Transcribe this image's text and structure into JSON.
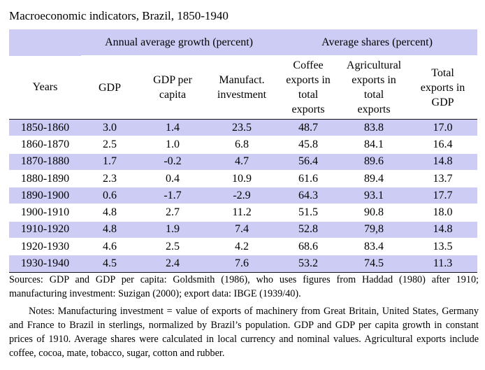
{
  "title": "Macroeconomic indicators, Brazil, 1850-1940",
  "header": {
    "group_growth": "Annual average growth (percent)",
    "group_shares": "Average shares (percent)",
    "col_years": "Years",
    "col_gdp": "GDP",
    "col_gdp_pc": [
      "GDP per",
      "capita"
    ],
    "col_manuf": [
      "Manufact.",
      "investment"
    ],
    "col_coffee": [
      "Coffee",
      "exports in",
      "total",
      "exports"
    ],
    "col_agri": [
      "Agricultural",
      "exports in",
      "total",
      "exports"
    ],
    "col_total": [
      "Total",
      "exports in",
      "GDP"
    ]
  },
  "rows": [
    {
      "years": "1850-1860",
      "gdp": "3.0",
      "gdp_pc": "1.4",
      "manuf": "23.5",
      "coffee": "48.7",
      "agri": "83.8",
      "total": "17.0"
    },
    {
      "years": "1860-1870",
      "gdp": "2.5",
      "gdp_pc": "1.0",
      "manuf": "6.8",
      "coffee": "45.8",
      "agri": "84.1",
      "total": "16.4"
    },
    {
      "years": "1870-1880",
      "gdp": "1.7",
      "gdp_pc": "-0.2",
      "manuf": "4.7",
      "coffee": "56.4",
      "agri": "89.6",
      "total": "14.8"
    },
    {
      "years": "1880-1890",
      "gdp": "2.3",
      "gdp_pc": "0.4",
      "manuf": "10.9",
      "coffee": "61.6",
      "agri": "89.4",
      "total": "13.7"
    },
    {
      "years": "1890-1900",
      "gdp": "0.6",
      "gdp_pc": "-1.7",
      "manuf": "-2.9",
      "coffee": "64.3",
      "agri": "93.1",
      "total": "17.7"
    },
    {
      "years": "1900-1910",
      "gdp": "4.8",
      "gdp_pc": "2.7",
      "manuf": "11.2",
      "coffee": "51.5",
      "agri": "90.8",
      "total": "18.0"
    },
    {
      "years": "1910-1920",
      "gdp": "4.8",
      "gdp_pc": "1.9",
      "manuf": "7.4",
      "coffee": "52.8",
      "agri": "79,8",
      "total": "14.8"
    },
    {
      "years": "1920-1930",
      "gdp": "4.6",
      "gdp_pc": "2.5",
      "manuf": "4.2",
      "coffee": "68.6",
      "agri": "83.4",
      "total": "13.5"
    },
    {
      "years": "1930-1940",
      "gdp": "4.5",
      "gdp_pc": "2.4",
      "manuf": "7.6",
      "coffee": "53.2",
      "agri": "74.5",
      "total": "11.3"
    }
  ],
  "sources": "Sources: GDP and GDP per capita: Goldsmith (1986), who uses figures from Haddad (1980) after 1910; manufacturing investment: Suzigan (2000); export data: IBGE (1939/40).",
  "notes": "Notes: Manufacturing investment = value of exports of machinery from Great Britain, United States, Germany and France to Brazil in sterlings, normalized by Brazil’s population. GDP and GDP per capita growth in constant prices of 1910. Average shares were calculated in local currency and nominal values. Agricultural exports include coffee, cocoa, mate, tobacco, sugar, cotton and rubber.",
  "colors": {
    "row_shade": "#ccccf4",
    "header_band": "#ccccf4"
  }
}
